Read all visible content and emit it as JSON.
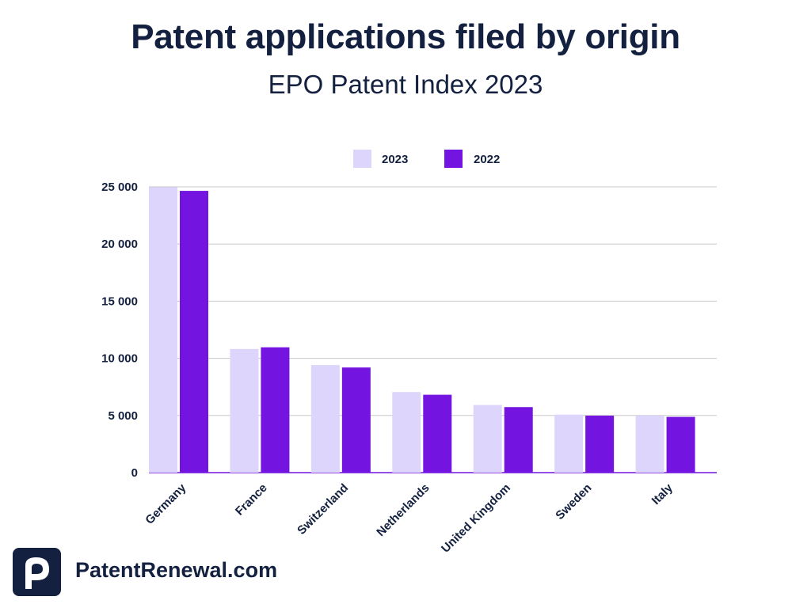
{
  "title": "Patent applications filed by origin",
  "subtitle": "EPO Patent Index 2023",
  "brand": {
    "text": "PatentRenewal.com",
    "logo_icon": "patentrenewal-p-logo"
  },
  "colors": {
    "series_2023": "#ddd5fb",
    "series_2022": "#7314e0",
    "text": "#13203f",
    "grid": "#c8c8c8"
  },
  "chart_data": {
    "type": "bar",
    "title": "Patent applications filed by origin",
    "subtitle": "EPO Patent Index 2023",
    "categories": [
      "Germany",
      "France",
      "Switzerland",
      "Netherlands",
      "United Kingdom",
      "Sweden",
      "Italy"
    ],
    "series": [
      {
        "name": "2023",
        "values": [
          24966,
          10814,
          9410,
          7049,
          5916,
          5077,
          5000
        ],
        "color": "#ddd5fb"
      },
      {
        "name": "2022",
        "values": [
          24649,
          10963,
          9197,
          6812,
          5732,
          4984,
          4878
        ],
        "color": "#7314e0"
      }
    ],
    "yticks": [
      "0",
      "5 000",
      "10 000",
      "15 000",
      "20 000",
      "25 000"
    ],
    "ylim": [
      0,
      25000
    ],
    "grid": true,
    "legend_position": "top-center",
    "xlabel": "",
    "ylabel": ""
  }
}
